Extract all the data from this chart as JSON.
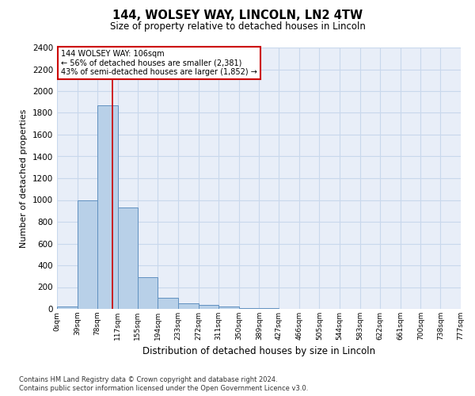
{
  "title1": "144, WOLSEY WAY, LINCOLN, LN2 4TW",
  "title2": "Size of property relative to detached houses in Lincoln",
  "xlabel": "Distribution of detached houses by size in Lincoln",
  "ylabel": "Number of detached properties",
  "footnote1": "Contains HM Land Registry data © Crown copyright and database right 2024.",
  "footnote2": "Contains public sector information licensed under the Open Government Licence v3.0.",
  "annotation_line1": "144 WOLSEY WAY: 106sqm",
  "annotation_line2": "← 56% of detached houses are smaller (2,381)",
  "annotation_line3": "43% of semi-detached houses are larger (1,852) →",
  "property_size": 106,
  "bin_edges": [
    0,
    39,
    78,
    117,
    155,
    194,
    233,
    272,
    311,
    350,
    389,
    427,
    466,
    505,
    544,
    583,
    622,
    661,
    700,
    738,
    777
  ],
  "bar_heights": [
    20,
    1000,
    1870,
    930,
    290,
    100,
    50,
    35,
    20,
    5,
    5,
    3,
    3,
    2,
    2,
    1,
    1,
    1,
    1,
    1
  ],
  "bar_color": "#b8d0e8",
  "bar_edge_color": "#6090c0",
  "vline_color": "#cc0000",
  "box_color": "#cc0000",
  "ylim": [
    0,
    2400
  ],
  "yticks": [
    0,
    200,
    400,
    600,
    800,
    1000,
    1200,
    1400,
    1600,
    1800,
    2000,
    2200,
    2400
  ],
  "tick_labels": [
    "0sqm",
    "39sqm",
    "78sqm",
    "117sqm",
    "155sqm",
    "194sqm",
    "233sqm",
    "272sqm",
    "311sqm",
    "350sqm",
    "389sqm",
    "427sqm",
    "466sqm",
    "505sqm",
    "544sqm",
    "583sqm",
    "622sqm",
    "661sqm",
    "700sqm",
    "738sqm",
    "777sqm"
  ],
  "grid_color": "#c8d8ec",
  "background_color": "#e8eef8"
}
